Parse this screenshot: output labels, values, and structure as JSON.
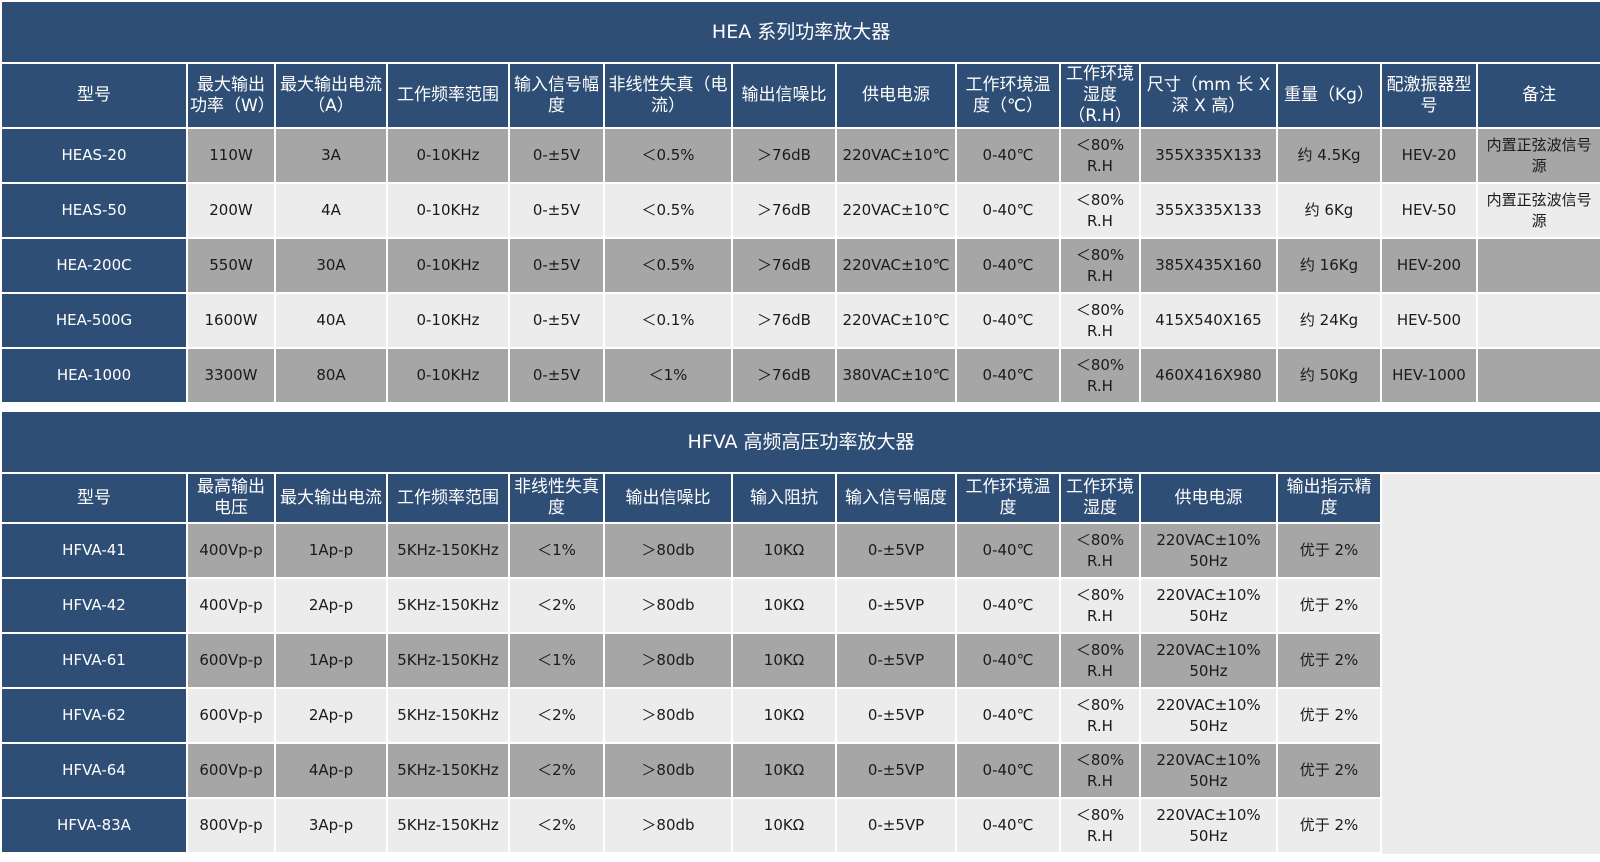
{
  "hea": {
    "title": "HEA 系列功率放大器",
    "headers": [
      "型号",
      "最大输出功率（W）",
      "最大输出电流（A）",
      "工作频率范围",
      "输入信号幅度",
      "非线性失真（电流）",
      "输出信噪比",
      "供电电源",
      "工作环境温度（℃）",
      "工作环境湿度（R.H）",
      "尺寸（mm 长 X 深 X 高）",
      "重量（Kg）",
      "配激振器型号",
      "备注"
    ],
    "rows": [
      [
        "HEAS-20",
        "110W",
        "3A",
        "0-10KHz",
        "0-±5V",
        "＜0.5%",
        "＞76dB",
        "220VAC±10℃",
        "0-40℃",
        "＜80% R.H",
        "355X335X133",
        "约 4.5Kg",
        "HEV-20",
        "内置正弦波信号源"
      ],
      [
        "HEAS-50",
        "200W",
        "4A",
        "0-10KHz",
        "0-±5V",
        "＜0.5%",
        "＞76dB",
        "220VAC±10℃",
        "0-40℃",
        "＜80% R.H",
        "355X335X133",
        "约 6Kg",
        "HEV-50",
        "内置正弦波信号源"
      ],
      [
        "HEA-200C",
        "550W",
        "30A",
        "0-10KHz",
        "0-±5V",
        "＜0.5%",
        "＞76dB",
        "220VAC±10℃",
        "0-40℃",
        "＜80% R.H",
        "385X435X160",
        "约 16Kg",
        "HEV-200",
        ""
      ],
      [
        "HEA-500G",
        "1600W",
        "40A",
        "0-10KHz",
        "0-±5V",
        "＜0.1%",
        "＞76dB",
        "220VAC±10℃",
        "0-40℃",
        "＜80% R.H",
        "415X540X165",
        "约 24Kg",
        "HEV-500",
        ""
      ],
      [
        "HEA-1000",
        "3300W",
        "80A",
        "0-10KHz",
        "0-±5V",
        "＜1%",
        "＞76dB",
        "380VAC±10℃",
        "0-40℃",
        "＜80% R.H",
        "460X416X980",
        "约 50Kg",
        "HEV-1000",
        ""
      ]
    ]
  },
  "hfva": {
    "title": "HFVA 高频高压功率放大器",
    "headers": [
      "型号",
      "最高输出电压",
      "最大输出电流",
      "工作频率范围",
      "非线性失真度",
      "输出信噪比",
      "输入阻抗",
      "输入信号幅度",
      "工作环境温度",
      "工作环境湿度",
      "供电电源",
      "输出指示精度"
    ],
    "rows": [
      [
        "HFVA-41",
        "400Vp-p",
        "1Ap-p",
        "5KHz-150KHz",
        "＜1%",
        "＞80db",
        "10KΩ",
        "0-±5VP",
        "0-40℃",
        "＜80% R.H",
        "220VAC±10% 50Hz",
        "优于 2%"
      ],
      [
        "HFVA-42",
        "400Vp-p",
        "2Ap-p",
        "5KHz-150KHz",
        "＜2%",
        "＞80db",
        "10KΩ",
        "0-±5VP",
        "0-40℃",
        "＜80% R.H",
        "220VAC±10% 50Hz",
        "优于 2%"
      ],
      [
        "HFVA-61",
        "600Vp-p",
        "1Ap-p",
        "5KHz-150KHz",
        "＜1%",
        "＞80db",
        "10KΩ",
        "0-±5VP",
        "0-40℃",
        "＜80% R.H",
        "220VAC±10% 50Hz",
        "优于 2%"
      ],
      [
        "HFVA-62",
        "600Vp-p",
        "2Ap-p",
        "5KHz-150KHz",
        "＜2%",
        "＞80db",
        "10KΩ",
        "0-±5VP",
        "0-40℃",
        "＜80% R.H",
        "220VAC±10% 50Hz",
        "优于 2%"
      ],
      [
        "HFVA-64",
        "600Vp-p",
        "4Ap-p",
        "5KHz-150KHz",
        "＜2%",
        "＞80db",
        "10KΩ",
        "0-±5VP",
        "0-40℃",
        "＜80% R.H",
        "220VAC±10% 50Hz",
        "优于 2%"
      ],
      [
        "HFVA-83A",
        "800Vp-p",
        "3Ap-p",
        "5KHz-150KHz",
        "＜2%",
        "＞80db",
        "10KΩ",
        "0-±5VP",
        "0-40℃",
        "＜80% R.H",
        "220VAC±10% 50Hz",
        "优于 2%"
      ]
    ]
  }
}
